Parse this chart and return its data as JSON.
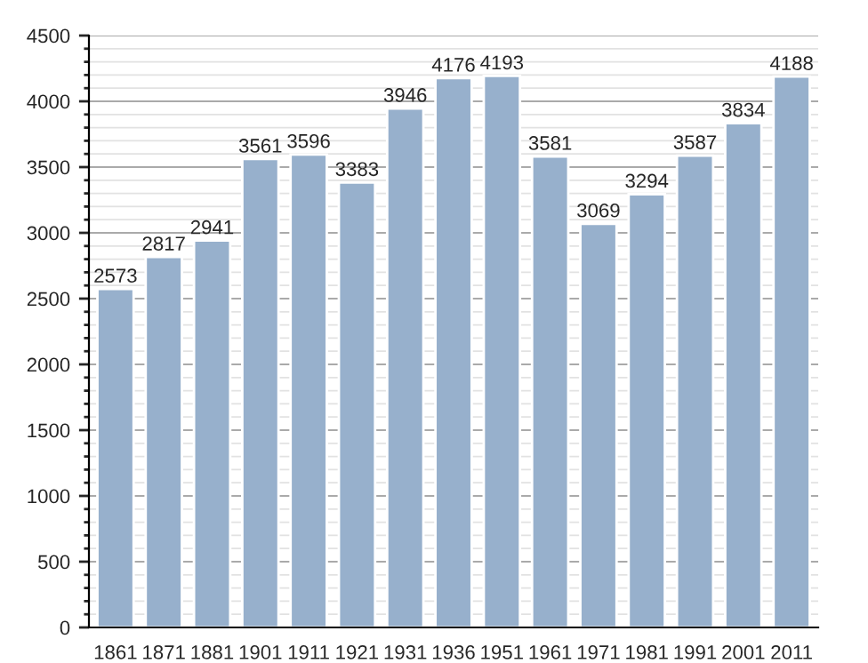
{
  "chart_data": {
    "type": "bar",
    "categories": [
      "1861",
      "1871",
      "1881",
      "1901",
      "1911",
      "1921",
      "1931",
      "1936",
      "1951",
      "1961",
      "1971",
      "1981",
      "1991",
      "2001",
      "2011"
    ],
    "values": [
      2573,
      2817,
      2941,
      3561,
      3596,
      3383,
      3946,
      4176,
      4193,
      3581,
      3069,
      3294,
      3587,
      3834,
      4188
    ],
    "color": "#97b0cc",
    "ylim": [
      0,
      4500
    ],
    "yticks": [
      0,
      500,
      1000,
      1500,
      2000,
      2500,
      3000,
      3500,
      4000,
      4500
    ],
    "grid": "y",
    "data_labels": true
  }
}
